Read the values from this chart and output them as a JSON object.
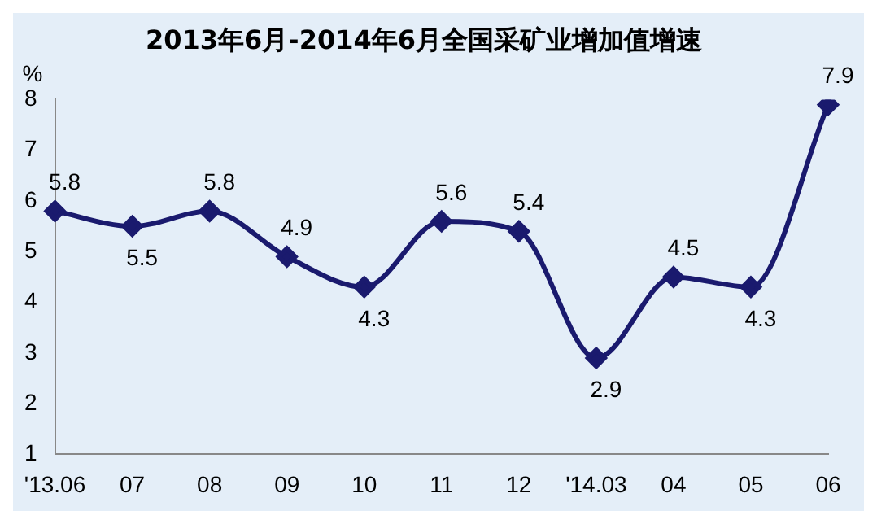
{
  "chart_data": {
    "type": "line",
    "title": "2013年6月-2014年6月全国采矿业增加值增速",
    "ylabel": "%",
    "categories": [
      "'13.06",
      "07",
      "08",
      "09",
      "10",
      "11",
      "12",
      "'14.03",
      "04",
      "05",
      "06"
    ],
    "series": [
      {
        "color": "#1a1a6e",
        "values": [
          5.8,
          5.5,
          5.8,
          4.9,
          4.3,
          5.6,
          5.4,
          2.9,
          4.5,
          4.3,
          7.9
        ]
      }
    ],
    "ylim": [
      1,
      8
    ],
    "yticks": [
      1,
      2,
      3,
      4,
      5,
      6,
      7,
      8
    ],
    "grid": false,
    "legend": false,
    "marker": "diamond",
    "line_style": "solid",
    "data_labels": true
  }
}
